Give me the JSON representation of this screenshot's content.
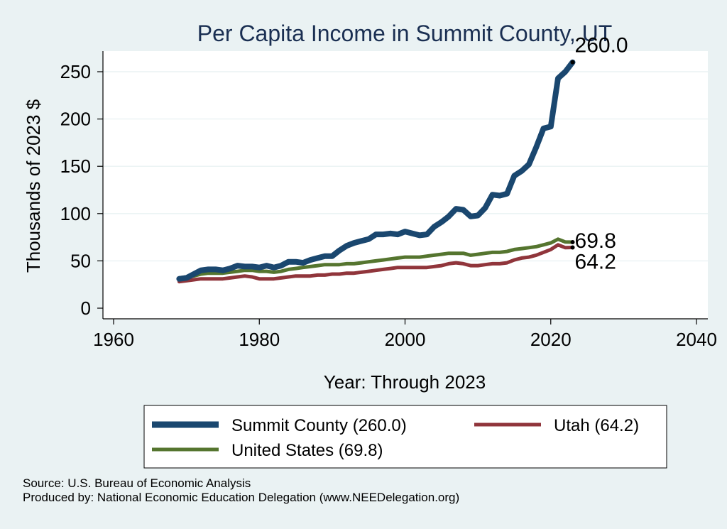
{
  "chart_data": {
    "type": "line",
    "title": "Per Capita Income in Summit County, UT",
    "xlabel": "Year: Through 2023",
    "ylabel": "Thousands of 2023 $",
    "xlim": [
      1960,
      2040
    ],
    "ylim": [
      0,
      260
    ],
    "x_ticks": [
      1960,
      1980,
      2000,
      2020,
      2040
    ],
    "y_ticks": [
      0,
      50,
      100,
      150,
      200,
      250
    ],
    "grid": "horizontal",
    "legend_position": "bottom",
    "x": [
      1969,
      1970,
      1971,
      1972,
      1973,
      1974,
      1975,
      1976,
      1977,
      1978,
      1979,
      1980,
      1981,
      1982,
      1983,
      1984,
      1985,
      1986,
      1987,
      1988,
      1989,
      1990,
      1991,
      1992,
      1993,
      1994,
      1995,
      1996,
      1997,
      1998,
      1999,
      2000,
      2001,
      2002,
      2003,
      2004,
      2005,
      2006,
      2007,
      2008,
      2009,
      2010,
      2011,
      2012,
      2013,
      2014,
      2015,
      2016,
      2017,
      2018,
      2019,
      2020,
      2021,
      2022,
      2023
    ],
    "series": [
      {
        "name": "Summit County (260.0)",
        "color": "#1a476f",
        "end_label": "260.0",
        "values": [
          31,
          32,
          36,
          40,
          41,
          41,
          40,
          42,
          45,
          44,
          44,
          43,
          45,
          43,
          45,
          49,
          49,
          48,
          51,
          53,
          55,
          55,
          61,
          66,
          69,
          71,
          73,
          78,
          78,
          79,
          78,
          81,
          79,
          77,
          78,
          86,
          91,
          97,
          105,
          104,
          97,
          98,
          106,
          120,
          119,
          121,
          140,
          145,
          152,
          170,
          190,
          192,
          243,
          250,
          260
        ]
      },
      {
        "name": "Utah (64.2)",
        "color": "#90353b",
        "end_label": "64.2",
        "values": [
          28,
          29,
          30,
          31,
          31,
          31,
          31,
          32,
          33,
          34,
          33,
          31,
          31,
          31,
          32,
          33,
          34,
          34,
          34,
          35,
          35,
          36,
          36,
          37,
          37,
          38,
          39,
          40,
          41,
          42,
          43,
          43,
          43,
          43,
          43,
          44,
          45,
          47,
          48,
          47,
          45,
          45,
          46,
          47,
          47,
          48,
          51,
          53,
          54,
          56,
          59,
          62,
          67,
          64,
          64.2
        ]
      },
      {
        "name": "United States (69.8)",
        "color": "#55752f",
        "end_label": "69.8",
        "values": [
          32,
          33,
          34,
          36,
          37,
          37,
          37,
          38,
          39,
          40,
          40,
          39,
          39,
          38,
          39,
          41,
          42,
          43,
          44,
          45,
          46,
          46,
          46,
          47,
          47,
          48,
          49,
          50,
          51,
          52,
          53,
          54,
          54,
          54,
          55,
          56,
          57,
          58,
          58,
          58,
          56,
          57,
          58,
          59,
          59,
          60,
          62,
          63,
          64,
          65,
          67,
          69,
          73,
          70,
          69.8
        ]
      }
    ]
  },
  "source": "Source: U.S. Bureau of Economic Analysis",
  "produced_by": "Produced by: National Economic Education Delegation (www.NEEDelegation.org)"
}
